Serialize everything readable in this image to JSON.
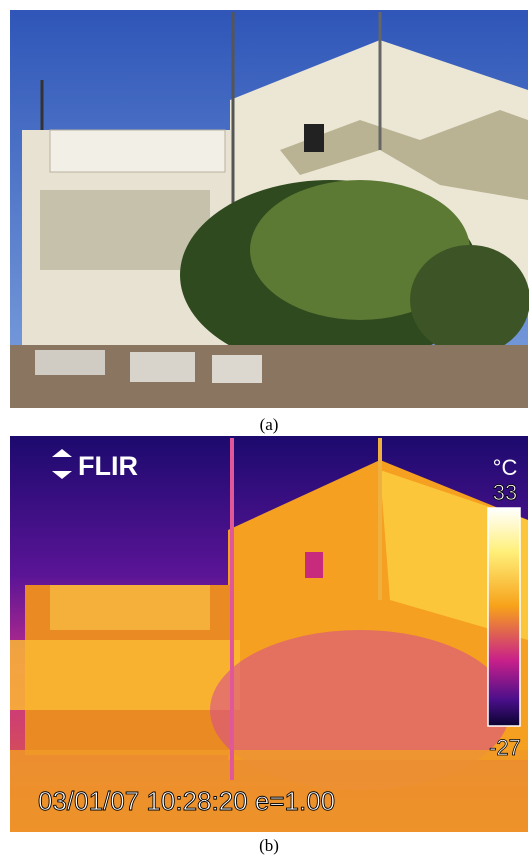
{
  "panels": [
    {
      "label": "(a)"
    },
    {
      "label": "(b)",
      "logo": "FLIR",
      "unit": "°C",
      "scale_max": "33",
      "scale_min": "-27",
      "timestamp": "03/01/07 10:28:20 e=1.00"
    }
  ]
}
